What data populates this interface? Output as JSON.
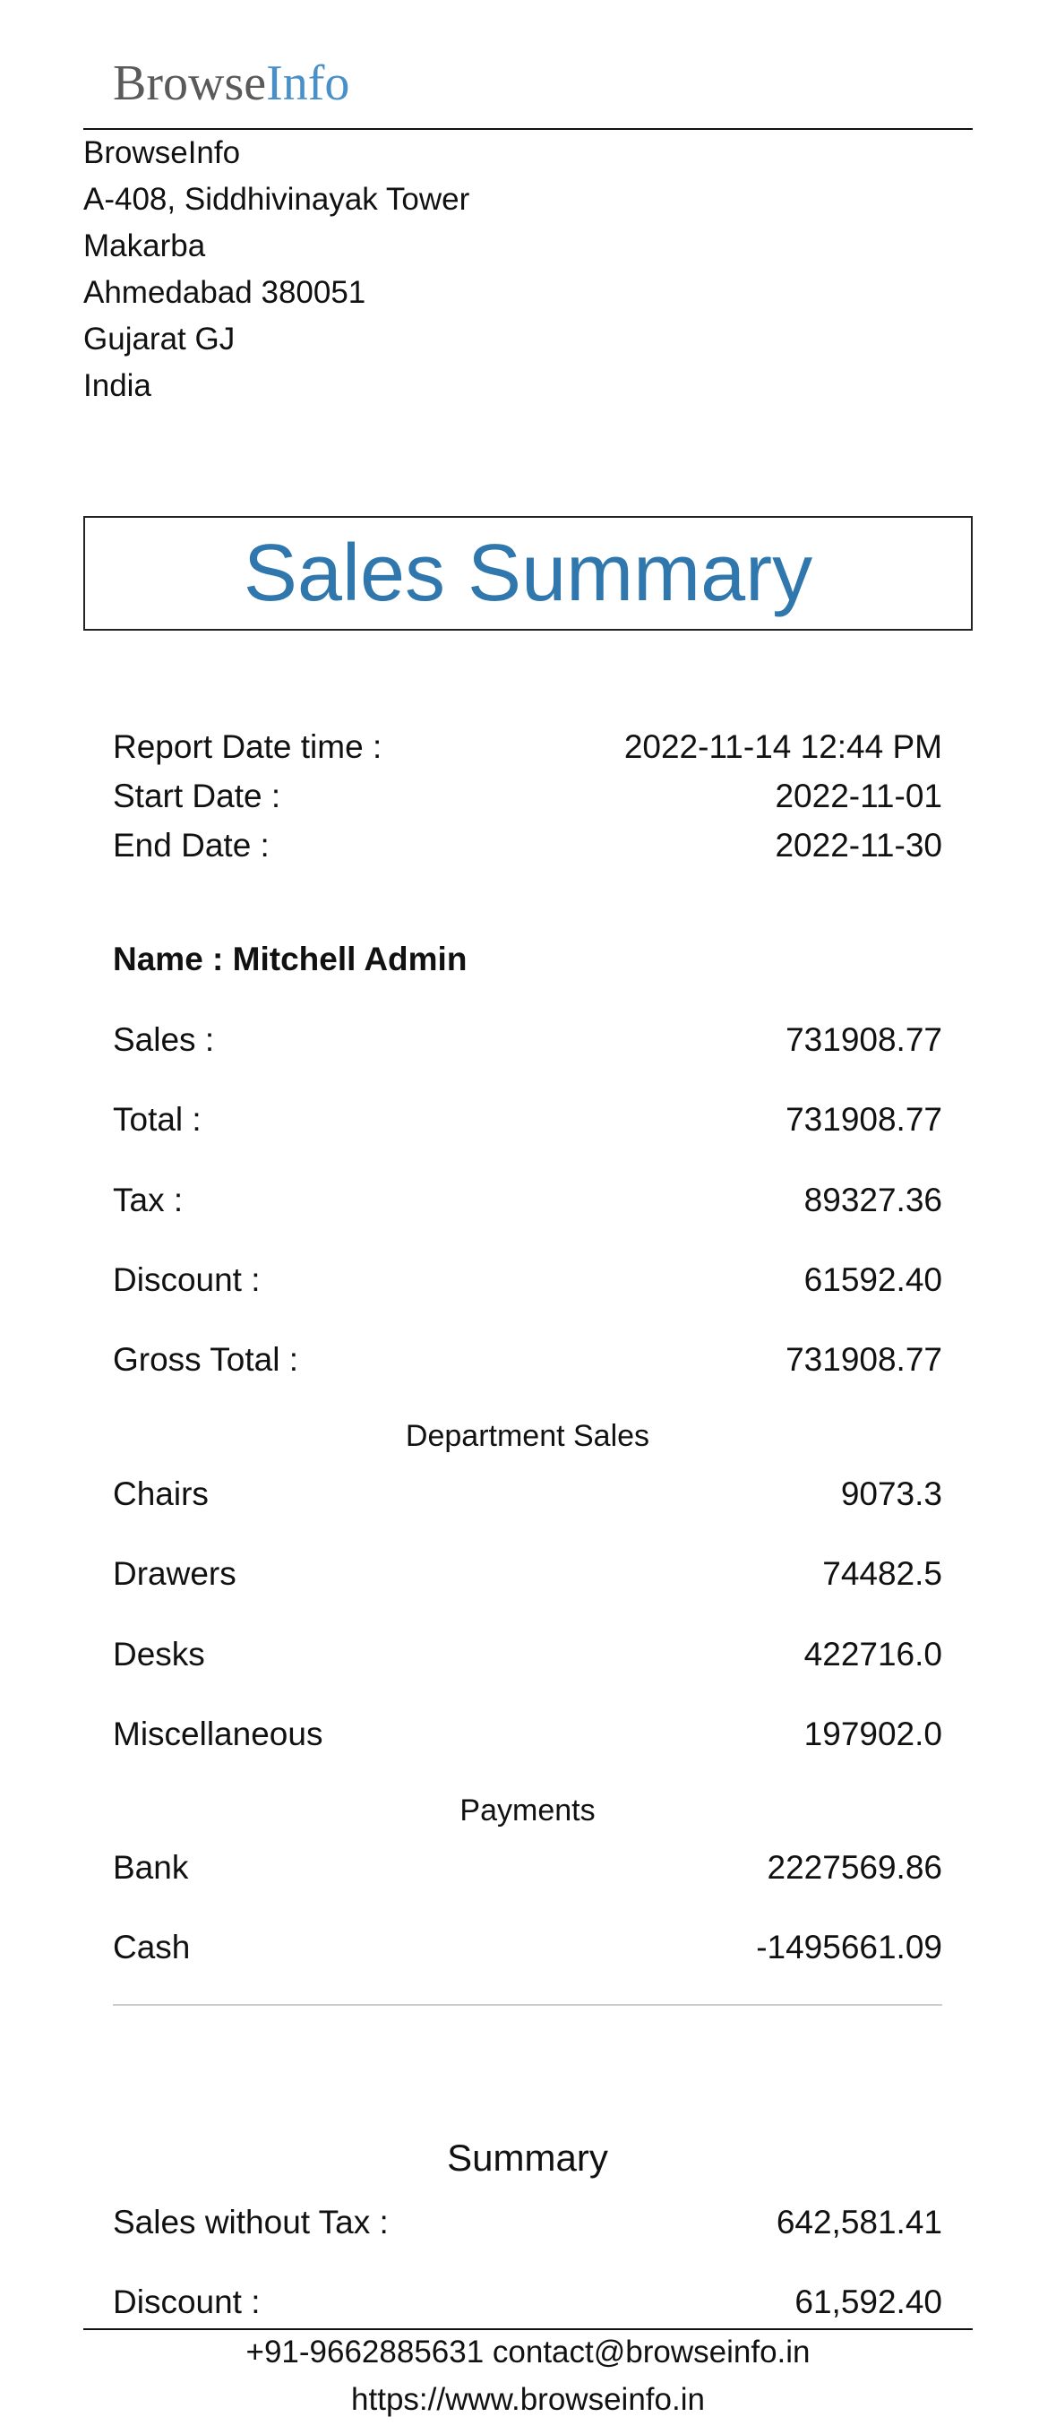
{
  "logo": {
    "part1": "Browse",
    "part2": "Info",
    "accent_color": "#4a90c8"
  },
  "company": {
    "lines": [
      "BrowseInfo",
      "A-408, Siddhivinayak Tower",
      "Makarba",
      "Ahmedabad 380051",
      "Gujarat GJ",
      "India"
    ]
  },
  "report": {
    "title": "Sales Summary",
    "title_color": "#2f77ad",
    "meta": [
      {
        "label": "Report Date time :",
        "value": "2022-11-14 12:44 PM"
      },
      {
        "label": "Start Date :",
        "value": "2022-11-01"
      },
      {
        "label": "End Date :",
        "value": "2022-11-30"
      }
    ],
    "name_label": "Name :",
    "name_value": "Mitchell Admin",
    "totals": [
      {
        "label": "Sales :",
        "value": "731908.77"
      },
      {
        "label": "Total :",
        "value": "731908.77"
      },
      {
        "label": "Tax :",
        "value": "89327.36"
      },
      {
        "label": "Discount :",
        "value": "61592.40"
      },
      {
        "label": "Gross Total :",
        "value": "731908.77"
      }
    ],
    "department_heading": "Department Sales",
    "departments": [
      {
        "label": "Chairs",
        "value": "9073.3"
      },
      {
        "label": "Drawers",
        "value": "74482.5"
      },
      {
        "label": "Desks",
        "value": "422716.0"
      },
      {
        "label": "Miscellaneous",
        "value": "197902.0"
      }
    ],
    "payments_heading": "Payments",
    "payments": [
      {
        "label": "Bank",
        "value": "2227569.86"
      },
      {
        "label": "Cash",
        "value": "-1495661.09"
      }
    ],
    "summary_heading": "Summary",
    "summary": [
      {
        "label": "Sales without Tax :",
        "value": "642,581.41"
      },
      {
        "label": "Discount :",
        "value": "61,592.40"
      }
    ]
  },
  "footer": {
    "contact": "+91-9662885631 contact@browseinfo.in",
    "website": "https://www.browseinfo.in"
  }
}
